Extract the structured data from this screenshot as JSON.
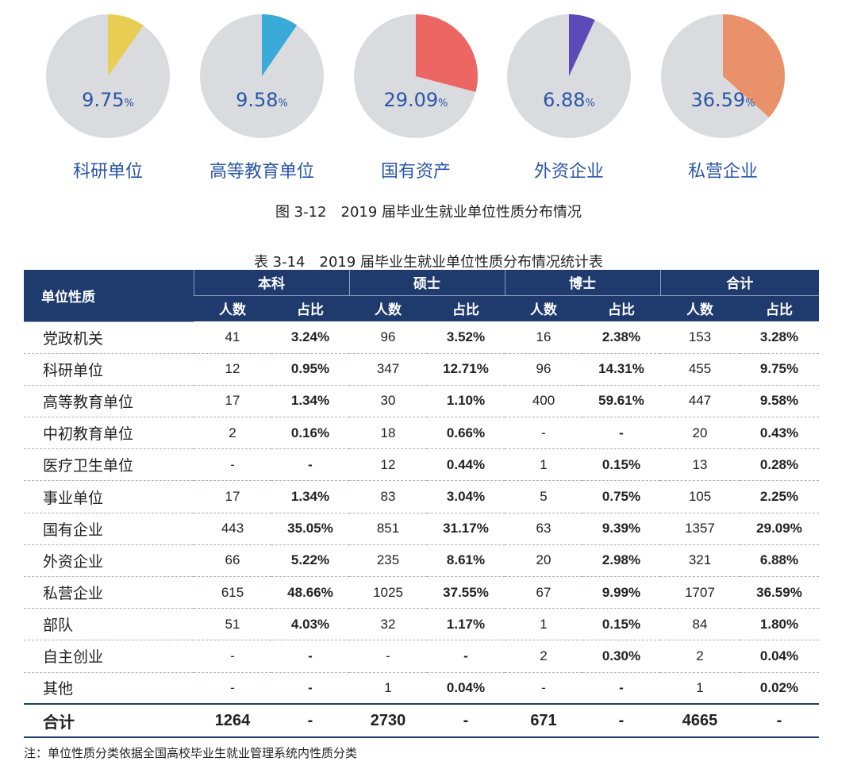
{
  "pie_charts": [
    {
      "category": "科研单位",
      "value": "9.75",
      "unit": "%",
      "pct": 9.75,
      "color": "#e8cf53"
    },
    {
      "category": "高等教育单位",
      "value": "9.58",
      "unit": "%",
      "pct": 9.58,
      "color": "#3aaad8"
    },
    {
      "category": "国有资产",
      "value": "29.09",
      "unit": "%",
      "pct": 29.09,
      "color": "#ec6663"
    },
    {
      "category": "外资企业",
      "value": "6.88",
      "unit": "%",
      "pct": 6.88,
      "color": "#5c4ab8"
    },
    {
      "category": "私营企业",
      "value": "36.59",
      "unit": "%",
      "pct": 36.59,
      "color": "#e8916a"
    }
  ],
  "pie_background_color": "#d9dbde",
  "figure_caption": "图 3-12　2019 届毕业生就业单位性质分布情况",
  "table": {
    "caption": "表 3-14　2019 届毕业生就业单位性质分布情况统计表",
    "first_header": "单位性质",
    "groups": [
      "本科",
      "硕士",
      "博士",
      "合计"
    ],
    "sub_headers": [
      "人数",
      "占比",
      "人数",
      "占比",
      "人数",
      "占比",
      "人数",
      "占比"
    ],
    "rows": [
      {
        "name": "党政机关",
        "cells": [
          "41",
          "3.24%",
          "96",
          "3.52%",
          "16",
          "2.38%",
          "153",
          "3.28%"
        ]
      },
      {
        "name": "科研单位",
        "cells": [
          "12",
          "0.95%",
          "347",
          "12.71%",
          "96",
          "14.31%",
          "455",
          "9.75%"
        ]
      },
      {
        "name": "高等教育单位",
        "cells": [
          "17",
          "1.34%",
          "30",
          "1.10%",
          "400",
          "59.61%",
          "447",
          "9.58%"
        ]
      },
      {
        "name": "中初教育单位",
        "cells": [
          "2",
          "0.16%",
          "18",
          "0.66%",
          "-",
          "-",
          "20",
          "0.43%"
        ]
      },
      {
        "name": "医疗卫生单位",
        "cells": [
          "-",
          "-",
          "12",
          "0.44%",
          "1",
          "0.15%",
          "13",
          "0.28%"
        ]
      },
      {
        "name": "事业单位",
        "cells": [
          "17",
          "1.34%",
          "83",
          "3.04%",
          "5",
          "0.75%",
          "105",
          "2.25%"
        ]
      },
      {
        "name": "国有企业",
        "cells": [
          "443",
          "35.05%",
          "851",
          "31.17%",
          "63",
          "9.39%",
          "1357",
          "29.09%"
        ]
      },
      {
        "name": "外资企业",
        "cells": [
          "66",
          "5.22%",
          "235",
          "8.61%",
          "20",
          "2.98%",
          "321",
          "6.88%"
        ]
      },
      {
        "name": "私营企业",
        "cells": [
          "615",
          "48.66%",
          "1025",
          "37.55%",
          "67",
          "9.99%",
          "1707",
          "36.59%"
        ]
      },
      {
        "name": "部队",
        "cells": [
          "51",
          "4.03%",
          "32",
          "1.17%",
          "1",
          "0.15%",
          "84",
          "1.80%"
        ]
      },
      {
        "name": "自主创业",
        "cells": [
          "-",
          "-",
          "-",
          "-",
          "2",
          "0.30%",
          "2",
          "0.04%"
        ]
      },
      {
        "name": "其他",
        "cells": [
          "-",
          "-",
          "1",
          "0.04%",
          "-",
          "-",
          "1",
          "0.02%"
        ]
      }
    ],
    "total": {
      "name": "合计",
      "cells": [
        "1264",
        "-",
        "2730",
        "-",
        "671",
        "-",
        "4665",
        "-"
      ]
    }
  },
  "note": "注：单位性质分类依据全国高校毕业生就业管理系统内性质分类",
  "chart_data": {
    "type": "pie",
    "categories": [
      "科研单位",
      "高等教育单位",
      "国有资产",
      "外资企业",
      "私营企业"
    ],
    "values": [
      9.75,
      9.58,
      29.09,
      6.88,
      36.59
    ],
    "title": "图 3-12　2019 届毕业生就业单位性质分布情况"
  }
}
